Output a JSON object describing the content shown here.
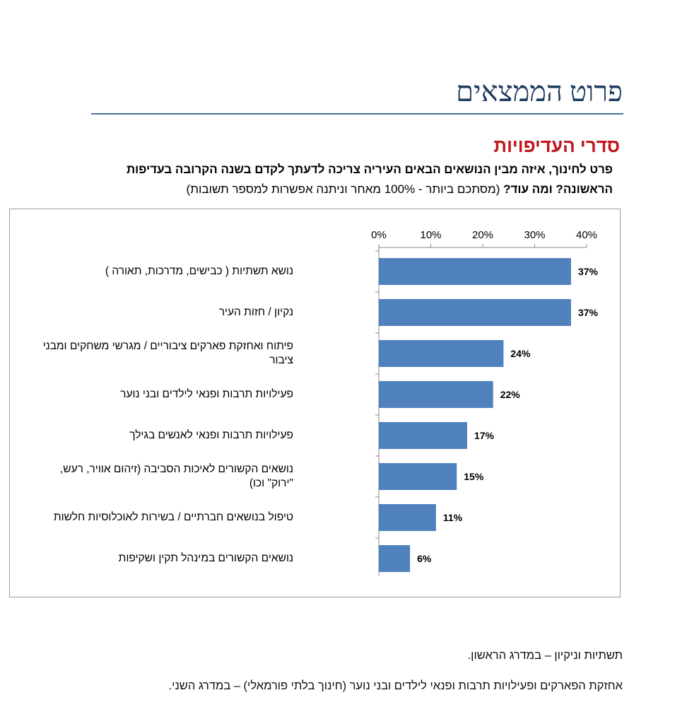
{
  "header": {
    "title": "פרוט הממצאים",
    "section_heading": "סדרי העדיפויות",
    "question_line1": "פרט לחינוך, איזה מבין הנושאים הבאים העיריה צריכה לדעתך לקדם בשנה הקרובה בעדיפות",
    "question_line2_bold": "הראשונה? ומה עוד?",
    "question_line2_rest": " (מסתכם ביותר  - 100% מאחר וניתנה אפשרות למספר תשובות)"
  },
  "chart_data": {
    "type": "bar",
    "orientation": "horizontal",
    "categories": [
      "נושא תשתיות ( כבישים, מדרכות, תאורה )",
      "נקיון / חזות העיר",
      "פיתוח ואחזקת פארקים ציבוריים / מגרשי משחקים ומבני ציבור",
      "פעילויות תרבות ופנאי לילדים ובני נוער",
      "פעילויות תרבות ופנאי לאנשים בגילך",
      "נושאים הקשורים לאיכות הסביבה (זיהום אוויר, רעש, \"ירוק\" וכו)",
      "טיפול בנושאים חברתיים / בשירות לאוכלוסיות חלשות",
      "נושאים הקשורים במינהל תקין ושקיפות"
    ],
    "values": [
      37,
      37,
      24,
      22,
      17,
      15,
      11,
      6
    ],
    "data_labels": [
      "37%",
      "37%",
      "24%",
      "22%",
      "17%",
      "15%",
      "11%",
      "6%"
    ],
    "x_ticks": [
      0,
      10,
      20,
      30,
      40
    ],
    "x_tick_labels": [
      "0%",
      "10%",
      "20%",
      "30%",
      "40%"
    ],
    "xlim": [
      0,
      40
    ],
    "axis_position": "top",
    "bar_color": "#4f81bd",
    "grid": false,
    "title": "",
    "xlabel": "",
    "ylabel": ""
  },
  "notes": {
    "line1": "תשתיות וניקיון – במדרג הראשון.",
    "line2": "אחזקת הפארקים ופעילויות תרבות ופנאי לילדים ובני נוער (חינוך בלתי פורמאלי) – במדרג השני."
  }
}
